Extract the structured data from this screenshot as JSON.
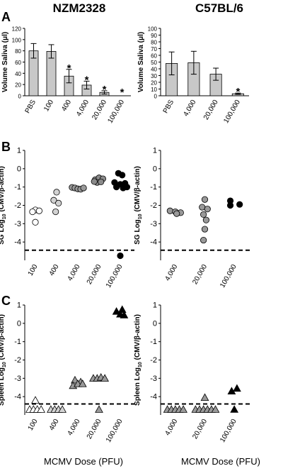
{
  "titles": {
    "left": "NZM2328",
    "right": "C57BL/6"
  },
  "panel_labels": {
    "a": "A",
    "b": "B",
    "c": "C"
  },
  "xlabel": "MCMV Dose (PFU)",
  "chart_data": [
    {
      "id": "A-left",
      "type": "bar",
      "ylabel": "Volume Saliva (μl)",
      "ylim": [
        0,
        120
      ],
      "yticks": [
        0,
        20,
        40,
        60,
        80,
        100,
        120
      ],
      "categories": [
        "PBS",
        "100",
        "400",
        "4,000",
        "20,000",
        "100,000"
      ],
      "values": [
        80,
        79,
        35,
        19,
        6,
        0
      ],
      "errors": [
        13,
        12,
        12,
        7,
        3,
        0
      ],
      "significant": [
        false,
        false,
        true,
        true,
        true,
        true
      ],
      "annotation": "*"
    },
    {
      "id": "A-right",
      "type": "bar",
      "ylabel": "Volume Saliva (μl)",
      "ylim": [
        0,
        100
      ],
      "yticks": [
        0,
        10,
        20,
        30,
        40,
        50,
        60,
        70,
        80,
        90,
        100
      ],
      "categories": [
        "PBS",
        "4,000",
        "20,000",
        "100,000"
      ],
      "values": [
        48,
        49,
        32,
        3
      ],
      "errors": [
        17,
        17,
        9,
        1
      ],
      "significant": [
        false,
        false,
        false,
        true
      ],
      "annotation": "*"
    },
    {
      "id": "B-left",
      "type": "scatter",
      "ylabel": "SG Log10 (CMV/β-actin)",
      "ylim": [
        -5,
        1
      ],
      "yticks": [
        1,
        0,
        -1,
        -2,
        -3,
        -4
      ],
      "detection_limit": -4.45,
      "categories": [
        "100",
        "400",
        "4,000",
        "20,000",
        "100,000"
      ],
      "fill_colors": [
        "#ffffff",
        "#d2d2d2",
        "#999999",
        "#8a8a8a",
        "#000000"
      ],
      "points": [
        {
          "cat": 0,
          "off": 0.0,
          "y": -2.25
        },
        {
          "cat": 0,
          "off": 0.2,
          "y": -2.3
        },
        {
          "cat": 0,
          "off": -0.15,
          "y": -2.35
        },
        {
          "cat": 0,
          "off": 0.0,
          "y": -2.92
        },
        {
          "cat": 1,
          "off": 0.0,
          "y": -1.28
        },
        {
          "cat": 1,
          "off": -0.15,
          "y": -1.72
        },
        {
          "cat": 1,
          "off": 0.1,
          "y": -1.88
        },
        {
          "cat": 1,
          "off": -0.05,
          "y": -2.35
        },
        {
          "cat": 2,
          "off": -0.3,
          "y": -1.02
        },
        {
          "cat": 2,
          "off": -0.15,
          "y": -1.05
        },
        {
          "cat": 2,
          "off": 0.0,
          "y": -1.1
        },
        {
          "cat": 2,
          "off": 0.15,
          "y": -1.12
        },
        {
          "cat": 2,
          "off": 0.3,
          "y": -1.05
        },
        {
          "cat": 3,
          "off": -0.2,
          "y": -0.6
        },
        {
          "cat": 3,
          "off": 0.0,
          "y": -0.5
        },
        {
          "cat": 3,
          "off": 0.2,
          "y": -0.55
        },
        {
          "cat": 3,
          "off": -0.1,
          "y": -0.75
        },
        {
          "cat": 3,
          "off": 0.1,
          "y": -0.72
        },
        {
          "cat": 3,
          "off": -0.25,
          "y": -0.7
        },
        {
          "cat": 4,
          "off": -0.1,
          "y": -0.25
        },
        {
          "cat": 4,
          "off": 0.1,
          "y": -0.35
        },
        {
          "cat": 4,
          "off": -0.3,
          "y": -0.75
        },
        {
          "cat": 4,
          "off": 0.0,
          "y": -0.85
        },
        {
          "cat": 4,
          "off": 0.25,
          "y": -0.8
        },
        {
          "cat": 4,
          "off": -0.2,
          "y": -1.0
        },
        {
          "cat": 4,
          "off": 0.15,
          "y": -1.05
        },
        {
          "cat": 4,
          "off": 0.35,
          "y": -1.0
        },
        {
          "cat": 4,
          "off": 0.0,
          "y": -4.75
        }
      ]
    },
    {
      "id": "B-right",
      "type": "scatter",
      "ylabel": "SG Log10 (CMV/β-actin)",
      "ylim": [
        -5,
        1
      ],
      "yticks": [
        1,
        0,
        -1,
        -2,
        -3,
        -4
      ],
      "detection_limit": -4.45,
      "categories": [
        "4,000",
        "20,000",
        "100,000"
      ],
      "fill_colors": [
        "#999999",
        "#999999",
        "#000000"
      ],
      "points": [
        {
          "cat": 0,
          "off": -0.2,
          "y": -2.3
        },
        {
          "cat": 0,
          "off": 0.0,
          "y": -2.35
        },
        {
          "cat": 0,
          "off": 0.2,
          "y": -2.4
        },
        {
          "cat": 0,
          "off": 0.05,
          "y": -2.45
        },
        {
          "cat": 1,
          "off": 0.0,
          "y": -1.68
        },
        {
          "cat": 1,
          "off": -0.1,
          "y": -2.1
        },
        {
          "cat": 1,
          "off": 0.1,
          "y": -2.2
        },
        {
          "cat": 1,
          "off": -0.05,
          "y": -2.5
        },
        {
          "cat": 1,
          "off": 0.05,
          "y": -2.8
        },
        {
          "cat": 1,
          "off": 0.0,
          "y": -3.3
        },
        {
          "cat": 1,
          "off": -0.05,
          "y": -3.9
        },
        {
          "cat": 2,
          "off": -0.15,
          "y": -1.75
        },
        {
          "cat": 2,
          "off": -0.15,
          "y": -2.0
        },
        {
          "cat": 2,
          "off": 0.2,
          "y": -1.95
        }
      ]
    },
    {
      "id": "C-left",
      "type": "scatter",
      "ylabel": "Spleen Log10 (CMV/β-actin)",
      "ylim": [
        -5,
        1
      ],
      "yticks": [
        1,
        0,
        -1,
        -2,
        -3,
        -4
      ],
      "detection_limit": -4.4,
      "marker": "triangle",
      "categories": [
        "100",
        "400",
        "4,000",
        "20,000",
        "100,000"
      ],
      "fill_colors": [
        "#ffffff",
        "#d2d2d2",
        "#999999",
        "#999999",
        "#000000"
      ],
      "points": [
        {
          "cat": 0,
          "off": 0.0,
          "y": -4.2
        },
        {
          "cat": 0,
          "off": -0.3,
          "y": -4.7
        },
        {
          "cat": 0,
          "off": -0.1,
          "y": -4.7
        },
        {
          "cat": 0,
          "off": 0.1,
          "y": -4.7
        },
        {
          "cat": 0,
          "off": 0.3,
          "y": -4.7
        },
        {
          "cat": 1,
          "off": -0.3,
          "y": -4.7
        },
        {
          "cat": 1,
          "off": -0.1,
          "y": -4.7
        },
        {
          "cat": 1,
          "off": 0.1,
          "y": -4.7
        },
        {
          "cat": 1,
          "off": 0.3,
          "y": -4.7
        },
        {
          "cat": 2,
          "off": -0.15,
          "y": -3.1
        },
        {
          "cat": 2,
          "off": 0.15,
          "y": -3.2
        },
        {
          "cat": 2,
          "off": -0.25,
          "y": -3.4
        },
        {
          "cat": 2,
          "off": 0.0,
          "y": -3.3
        },
        {
          "cat": 2,
          "off": 0.25,
          "y": -3.3
        },
        {
          "cat": 3,
          "off": -0.3,
          "y": -3.0
        },
        {
          "cat": 3,
          "off": -0.1,
          "y": -3.0
        },
        {
          "cat": 3,
          "off": 0.1,
          "y": -2.95
        },
        {
          "cat": 3,
          "off": 0.3,
          "y": -3.0
        },
        {
          "cat": 3,
          "off": 0.0,
          "y": -4.7
        },
        {
          "cat": 4,
          "off": 0.0,
          "y": 0.5
        },
        {
          "cat": 4,
          "off": 0.2,
          "y": 0.45
        },
        {
          "cat": 4,
          "off": -0.2,
          "y": 0.65
        },
        {
          "cat": 4,
          "off": 0.1,
          "y": 0.75
        }
      ]
    },
    {
      "id": "C-right",
      "type": "scatter",
      "ylabel": "Spleen Log10 (CMV/β-actin)",
      "ylim": [
        -5,
        1
      ],
      "yticks": [
        1,
        0,
        -1,
        -2,
        -3,
        -4
      ],
      "detection_limit": -4.4,
      "marker": "triangle",
      "categories": [
        "4,000",
        "20,000",
        "100,000"
      ],
      "fill_colors": [
        "#999999",
        "#999999",
        "#000000"
      ],
      "points": [
        {
          "cat": 0,
          "off": -0.3,
          "y": -4.7
        },
        {
          "cat": 0,
          "off": -0.15,
          "y": -4.7
        },
        {
          "cat": 0,
          "off": 0.0,
          "y": -4.7
        },
        {
          "cat": 0,
          "off": 0.15,
          "y": -4.7
        },
        {
          "cat": 0,
          "off": 0.3,
          "y": -4.7
        },
        {
          "cat": 1,
          "off": 0.0,
          "y": -4.05
        },
        {
          "cat": 1,
          "off": -0.35,
          "y": -4.7
        },
        {
          "cat": 1,
          "off": -0.2,
          "y": -4.7
        },
        {
          "cat": 1,
          "off": -0.05,
          "y": -4.7
        },
        {
          "cat": 1,
          "off": 0.1,
          "y": -4.7
        },
        {
          "cat": 1,
          "off": 0.25,
          "y": -4.7
        },
        {
          "cat": 1,
          "off": 0.4,
          "y": -4.7
        },
        {
          "cat": 2,
          "off": -0.1,
          "y": -3.7
        },
        {
          "cat": 2,
          "off": 0.1,
          "y": -3.55
        },
        {
          "cat": 2,
          "off": 0.0,
          "y": -4.7
        }
      ]
    }
  ]
}
